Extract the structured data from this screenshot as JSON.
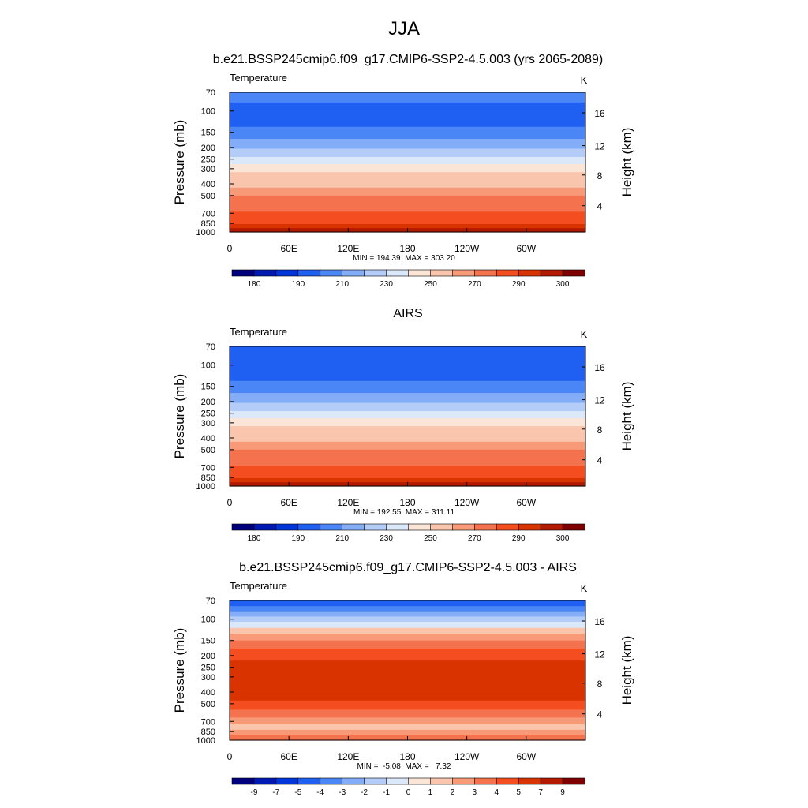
{
  "figure": {
    "title": "JJA"
  },
  "chart_data": [
    {
      "type": "heatmap",
      "title": "b.e21.BSSP245cmip6.f09_g17.CMIP6-SSP2-4.5.003 (yrs 2065-2089)",
      "left_label": "Temperature",
      "units": "K",
      "ylabel": "Pressure (mb)",
      "y2label": "Height (km)",
      "x_ticks": [
        "0",
        "60E",
        "120E",
        "180",
        "120W",
        "60W"
      ],
      "y_ticks": [
        "70",
        "100",
        "150",
        "200",
        "250",
        "300",
        "400",
        "500",
        "700",
        "850",
        "1000"
      ],
      "y2_ticks": [
        "4",
        "8",
        "12",
        "16"
      ],
      "stats": "MIN = 194.39  MAX = 303.20",
      "colorbar": {
        "colors": [
          "#00007f",
          "#0019b2",
          "#0036d9",
          "#1f5ff2",
          "#4a86f5",
          "#84adf7",
          "#b4cdf8",
          "#dbe8fa",
          "#fbe5d6",
          "#fac5ad",
          "#f89a78",
          "#f4724d",
          "#f34d20",
          "#d93300",
          "#b31a00",
          "#7f0000"
        ],
        "labels": [
          "180",
          "190",
          "210",
          "230",
          "250",
          "270",
          "290",
          "300"
        ]
      },
      "levels": [
        {
          "p": 70,
          "c": 4
        },
        {
          "p": 85,
          "c": 3
        },
        {
          "p": 110,
          "c": 3
        },
        {
          "p": 135,
          "c": 4
        },
        {
          "p": 170,
          "c": 5
        },
        {
          "p": 205,
          "c": 6
        },
        {
          "p": 240,
          "c": 7
        },
        {
          "p": 275,
          "c": 8
        },
        {
          "p": 320,
          "c": 9
        },
        {
          "p": 370,
          "c": 9
        },
        {
          "p": 430,
          "c": 10
        },
        {
          "p": 500,
          "c": 11
        },
        {
          "p": 580,
          "c": 11
        },
        {
          "p": 680,
          "c": 12
        },
        {
          "p": 780,
          "c": 12
        },
        {
          "p": 860,
          "c": 13
        },
        {
          "p": 930,
          "c": 14
        },
        {
          "p": 1000,
          "c": 14
        }
      ],
      "min": 194.39,
      "max": 303.2
    },
    {
      "type": "heatmap",
      "title": "AIRS",
      "left_label": "Temperature",
      "units": "K",
      "ylabel": "Pressure (mb)",
      "y2label": "Height (km)",
      "x_ticks": [
        "0",
        "60E",
        "120E",
        "180",
        "120W",
        "60W"
      ],
      "y_ticks": [
        "70",
        "100",
        "150",
        "200",
        "250",
        "300",
        "400",
        "500",
        "700",
        "850",
        "1000"
      ],
      "y2_ticks": [
        "4",
        "8",
        "12",
        "16"
      ],
      "stats": "MIN = 192.55  MAX = 311.11",
      "colorbar": {
        "colors": [
          "#00007f",
          "#0019b2",
          "#0036d9",
          "#1f5ff2",
          "#4a86f5",
          "#84adf7",
          "#b4cdf8",
          "#dbe8fa",
          "#fbe5d6",
          "#fac5ad",
          "#f89a78",
          "#f4724d",
          "#f34d20",
          "#d93300",
          "#b31a00",
          "#7f0000"
        ],
        "labels": [
          "180",
          "190",
          "210",
          "230",
          "250",
          "270",
          "290",
          "300"
        ]
      },
      "levels": [
        {
          "p": 70,
          "c": 3
        },
        {
          "p": 85,
          "c": 3
        },
        {
          "p": 110,
          "c": 3
        },
        {
          "p": 135,
          "c": 4
        },
        {
          "p": 170,
          "c": 5
        },
        {
          "p": 205,
          "c": 6
        },
        {
          "p": 240,
          "c": 7
        },
        {
          "p": 275,
          "c": 8
        },
        {
          "p": 320,
          "c": 9
        },
        {
          "p": 370,
          "c": 9
        },
        {
          "p": 430,
          "c": 10
        },
        {
          "p": 500,
          "c": 11
        },
        {
          "p": 580,
          "c": 11
        },
        {
          "p": 680,
          "c": 12
        },
        {
          "p": 780,
          "c": 12
        },
        {
          "p": 860,
          "c": 13
        },
        {
          "p": 930,
          "c": 14
        },
        {
          "p": 1000,
          "c": 14
        }
      ],
      "min": 192.55,
      "max": 311.11
    },
    {
      "type": "heatmap",
      "title": "b.e21.BSSP245cmip6.f09_g17.CMIP6-SSP2-4.5.003 - AIRS",
      "left_label": "Temperature",
      "units": "K",
      "ylabel": "Pressure (mb)",
      "y2label": "Height (km)",
      "x_ticks": [
        "0",
        "60E",
        "120E",
        "180",
        "120W",
        "60W"
      ],
      "y_ticks": [
        "70",
        "100",
        "150",
        "200",
        "250",
        "300",
        "400",
        "500",
        "700",
        "850",
        "1000"
      ],
      "y2_ticks": [
        "4",
        "8",
        "12",
        "16"
      ],
      "stats": "MIN =  -5.08  MAX =   7.32",
      "colorbar": {
        "colors": [
          "#00007f",
          "#0019b2",
          "#0036d9",
          "#1f5ff2",
          "#4a86f5",
          "#84adf7",
          "#b4cdf8",
          "#dbe8fa",
          "#fbe5d6",
          "#fac5ad",
          "#f89a78",
          "#f4724d",
          "#f34d20",
          "#d93300",
          "#b31a00",
          "#7f0000"
        ],
        "labels": [
          "-9",
          "-7",
          "-5",
          "-4",
          "-3",
          "-2",
          "-1",
          "0",
          "1",
          "2",
          "3",
          "4",
          "5",
          "7",
          "9"
        ]
      },
      "levels": [
        {
          "p": 70,
          "c": 3
        },
        {
          "p": 78,
          "c": 4
        },
        {
          "p": 86,
          "c": 5
        },
        {
          "p": 95,
          "c": 6
        },
        {
          "p": 105,
          "c": 7
        },
        {
          "p": 118,
          "c": 9
        },
        {
          "p": 132,
          "c": 10
        },
        {
          "p": 150,
          "c": 11
        },
        {
          "p": 175,
          "c": 12
        },
        {
          "p": 220,
          "c": 13
        },
        {
          "p": 300,
          "c": 13
        },
        {
          "p": 400,
          "c": 13
        },
        {
          "p": 470,
          "c": 12
        },
        {
          "p": 560,
          "c": 11
        },
        {
          "p": 650,
          "c": 10
        },
        {
          "p": 740,
          "c": 9
        },
        {
          "p": 820,
          "c": 10
        },
        {
          "p": 900,
          "c": 11
        },
        {
          "p": 1000,
          "c": 10
        }
      ],
      "min": -5.08,
      "max": 7.32
    }
  ]
}
